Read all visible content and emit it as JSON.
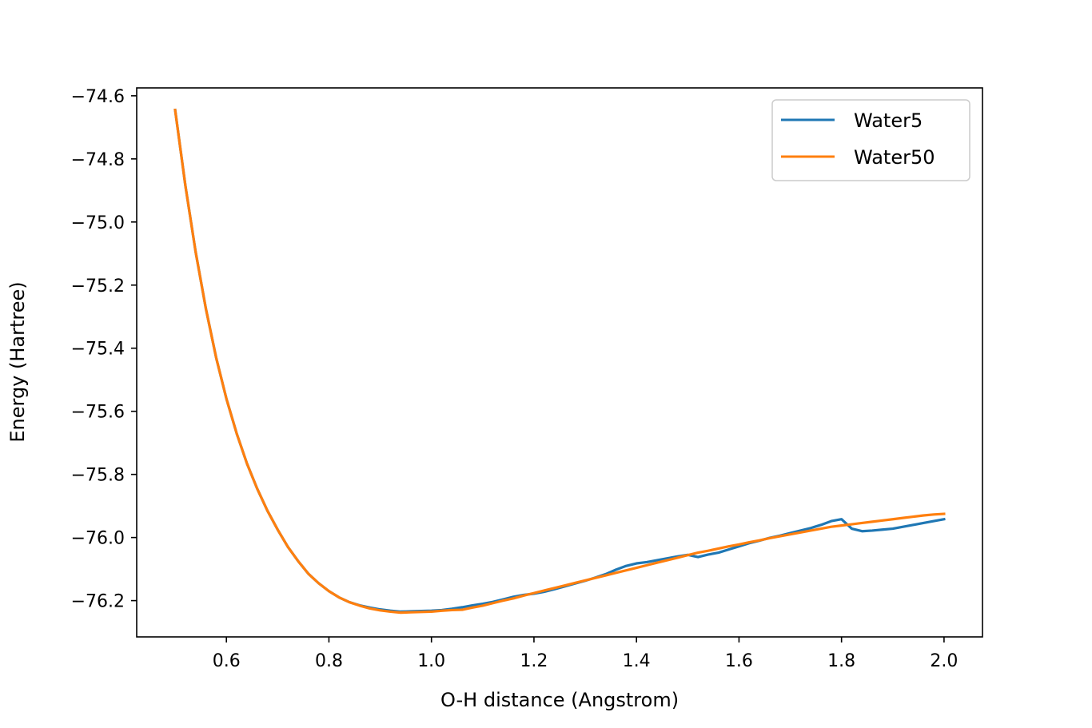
{
  "chart_data": {
    "type": "line",
    "title": "",
    "xlabel": "O-H distance (Angstrom)",
    "ylabel": "Energy (Hartree)",
    "xlim": [
      0.425,
      2.075
    ],
    "ylim": [
      -76.315,
      -74.575
    ],
    "xticks": [
      0.6,
      0.8,
      1.0,
      1.2,
      1.4,
      1.6,
      1.8,
      2.0
    ],
    "xtick_labels": [
      "0.6",
      "0.8",
      "1.0",
      "1.2",
      "1.4",
      "1.6",
      "1.8",
      "2.0"
    ],
    "yticks": [
      -74.6,
      -74.8,
      -75.0,
      -75.2,
      -75.4,
      -75.6,
      -75.8,
      -76.0,
      -76.2
    ],
    "ytick_labels": [
      "−74.6",
      "−74.8",
      "−75.0",
      "−75.2",
      "−75.4",
      "−75.6",
      "−75.8",
      "−76.0",
      "−76.2"
    ],
    "grid": false,
    "legend_position": "top-right",
    "series": [
      {
        "name": "Water5",
        "color": "#1f77b4",
        "x": [
          0.5,
          0.52,
          0.54,
          0.56,
          0.58,
          0.6,
          0.62,
          0.64,
          0.66,
          0.68,
          0.7,
          0.72,
          0.74,
          0.76,
          0.78,
          0.8,
          0.82,
          0.84,
          0.86,
          0.88,
          0.9,
          0.92,
          0.94,
          0.96,
          0.98,
          1.0,
          1.02,
          1.04,
          1.06,
          1.08,
          1.1,
          1.12,
          1.14,
          1.16,
          1.18,
          1.2,
          1.22,
          1.24,
          1.26,
          1.28,
          1.3,
          1.32,
          1.34,
          1.36,
          1.38,
          1.4,
          1.42,
          1.44,
          1.46,
          1.48,
          1.5,
          1.52,
          1.54,
          1.56,
          1.58,
          1.6,
          1.62,
          1.64,
          1.66,
          1.68,
          1.7,
          1.72,
          1.74,
          1.76,
          1.78,
          1.8,
          1.82,
          1.84,
          1.86,
          1.88,
          1.9,
          1.92,
          1.94,
          1.96,
          1.98,
          2.0
        ],
        "values": [
          -74.645,
          -74.885,
          -75.095,
          -75.275,
          -75.43,
          -75.56,
          -75.67,
          -75.765,
          -75.845,
          -75.915,
          -75.975,
          -76.03,
          -76.075,
          -76.115,
          -76.145,
          -76.17,
          -76.19,
          -76.205,
          -76.215,
          -76.222,
          -76.228,
          -76.232,
          -76.235,
          -76.234,
          -76.233,
          -76.232,
          -76.23,
          -76.226,
          -76.221,
          -76.215,
          -76.21,
          -76.204,
          -76.196,
          -76.188,
          -76.182,
          -76.178,
          -76.172,
          -76.164,
          -76.155,
          -76.146,
          -76.137,
          -76.127,
          -76.116,
          -76.102,
          -76.09,
          -76.082,
          -76.078,
          -76.072,
          -76.066,
          -76.06,
          -76.055,
          -76.062,
          -76.054,
          -76.048,
          -76.038,
          -76.028,
          -76.018,
          -76.01,
          -76.001,
          -75.994,
          -75.986,
          -75.978,
          -75.97,
          -75.96,
          -75.948,
          -75.942,
          -75.972,
          -75.98,
          -75.978,
          -75.975,
          -75.972,
          -75.966,
          -75.96,
          -75.954,
          -75.948,
          -75.942
        ]
      },
      {
        "name": "Water50",
        "color": "#ff7f0e",
        "x": [
          0.5,
          0.52,
          0.54,
          0.56,
          0.58,
          0.6,
          0.62,
          0.64,
          0.66,
          0.68,
          0.7,
          0.72,
          0.74,
          0.76,
          0.78,
          0.8,
          0.82,
          0.84,
          0.86,
          0.88,
          0.9,
          0.92,
          0.94,
          0.96,
          0.98,
          1.0,
          1.02,
          1.04,
          1.06,
          1.08,
          1.1,
          1.12,
          1.14,
          1.16,
          1.18,
          1.2,
          1.22,
          1.24,
          1.26,
          1.28,
          1.3,
          1.32,
          1.34,
          1.36,
          1.38,
          1.4,
          1.42,
          1.44,
          1.46,
          1.48,
          1.5,
          1.52,
          1.54,
          1.56,
          1.58,
          1.6,
          1.62,
          1.64,
          1.66,
          1.68,
          1.7,
          1.72,
          1.74,
          1.76,
          1.78,
          1.8,
          1.82,
          1.84,
          1.86,
          1.88,
          1.9,
          1.92,
          1.94,
          1.96,
          1.98,
          2.0
        ],
        "values": [
          -74.645,
          -74.885,
          -75.095,
          -75.275,
          -75.43,
          -75.56,
          -75.67,
          -75.765,
          -75.845,
          -75.915,
          -75.975,
          -76.03,
          -76.075,
          -76.115,
          -76.145,
          -76.17,
          -76.19,
          -76.205,
          -76.216,
          -76.225,
          -76.231,
          -76.235,
          -76.238,
          -76.237,
          -76.236,
          -76.235,
          -76.232,
          -76.23,
          -76.229,
          -76.222,
          -76.216,
          -76.208,
          -76.2,
          -76.193,
          -76.184,
          -76.176,
          -76.168,
          -76.16,
          -76.152,
          -76.144,
          -76.136,
          -76.128,
          -76.12,
          -76.112,
          -76.104,
          -76.096,
          -76.088,
          -76.08,
          -76.072,
          -76.064,
          -76.056,
          -76.048,
          -76.042,
          -76.035,
          -76.028,
          -76.022,
          -76.015,
          -76.009,
          -76.002,
          -75.996,
          -75.99,
          -75.984,
          -75.978,
          -75.972,
          -75.966,
          -75.962,
          -75.958,
          -75.954,
          -75.95,
          -75.946,
          -75.942,
          -75.938,
          -75.934,
          -75.93,
          -75.927,
          -75.925
        ]
      }
    ]
  }
}
